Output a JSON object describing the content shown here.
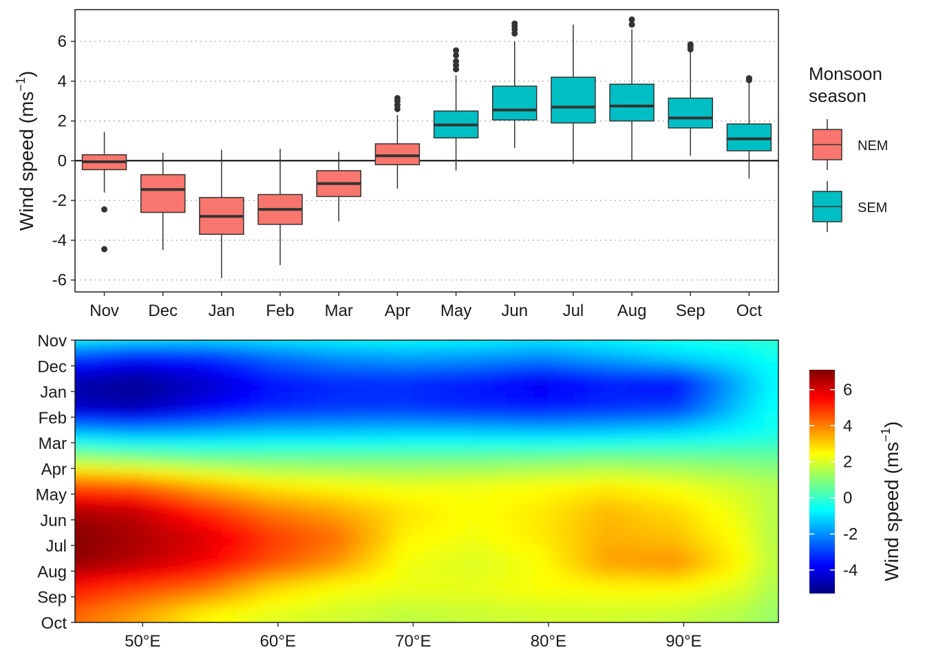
{
  "chart_data": [
    {
      "type": "box",
      "ylabel": "Wind speed (ms",
      "ylabel_sup": "−1",
      "ylabel_close": ")",
      "ylim": [
        -6.6,
        7.6
      ],
      "yticks": [
        -6,
        -4,
        -2,
        0,
        2,
        4,
        6
      ],
      "grid": "horizontal dotted",
      "legend": {
        "title_line1": "Monsoon",
        "title_line2": "season",
        "placement": "right",
        "entries": [
          {
            "name": "NEM",
            "color": "#F8766D"
          },
          {
            "name": "SEM",
            "color": "#00BFC4"
          }
        ]
      },
      "categories": [
        "Nov",
        "Dec",
        "Jan",
        "Feb",
        "Mar",
        "Apr",
        "May",
        "Jun",
        "Jul",
        "Aug",
        "Sep",
        "Oct"
      ],
      "boxes": [
        {
          "month": "Nov",
          "season": "NEM",
          "min": -1.6,
          "q1": -0.45,
          "median": -0.05,
          "q3": 0.3,
          "max": 1.45,
          "outliers": [
            -2.45,
            -4.45
          ]
        },
        {
          "month": "Dec",
          "season": "NEM",
          "min": -4.5,
          "q1": -2.6,
          "median": -1.45,
          "q3": -0.7,
          "max": 0.4,
          "outliers": []
        },
        {
          "month": "Jan",
          "season": "NEM",
          "min": -5.9,
          "q1": -3.7,
          "median": -2.8,
          "q3": -1.85,
          "max": 0.55,
          "outliers": []
        },
        {
          "month": "Feb",
          "season": "NEM",
          "min": -5.25,
          "q1": -3.2,
          "median": -2.45,
          "q3": -1.7,
          "max": 0.6,
          "outliers": []
        },
        {
          "month": "Mar",
          "season": "NEM",
          "min": -3.05,
          "q1": -1.8,
          "median": -1.15,
          "q3": -0.5,
          "max": 0.45,
          "outliers": []
        },
        {
          "month": "Apr",
          "season": "NEM",
          "min": -1.4,
          "q1": -0.2,
          "median": 0.25,
          "q3": 0.85,
          "max": 2.3,
          "outliers": [
            2.6,
            2.8,
            3.0,
            3.15
          ]
        },
        {
          "month": "May",
          "season": "SEM",
          "min": -0.5,
          "q1": 1.15,
          "median": 1.8,
          "q3": 2.5,
          "max": 4.3,
          "outliers": [
            4.6,
            4.8,
            5.0,
            5.3,
            5.55
          ]
        },
        {
          "month": "Jun",
          "season": "SEM",
          "min": 0.65,
          "q1": 2.05,
          "median": 2.55,
          "q3": 3.75,
          "max": 6.0,
          "outliers": [
            6.4,
            6.6,
            6.75,
            6.9
          ]
        },
        {
          "month": "Jul",
          "season": "SEM",
          "min": -0.15,
          "q1": 1.9,
          "median": 2.7,
          "q3": 4.2,
          "max": 6.85,
          "outliers": []
        },
        {
          "month": "Aug",
          "season": "SEM",
          "min": 0.05,
          "q1": 2.0,
          "median": 2.75,
          "q3": 3.85,
          "max": 6.6,
          "outliers": [
            6.85,
            7.1
          ]
        },
        {
          "month": "Sep",
          "season": "SEM",
          "min": 0.25,
          "q1": 1.65,
          "median": 2.15,
          "q3": 3.15,
          "max": 5.5,
          "outliers": [
            5.6,
            5.75,
            5.85
          ]
        },
        {
          "month": "Oct",
          "season": "SEM",
          "min": -0.9,
          "q1": 0.5,
          "median": 1.1,
          "q3": 1.85,
          "max": 3.9,
          "outliers": [
            4.05,
            4.15
          ]
        }
      ]
    },
    {
      "type": "heatmap",
      "x_label_unit": "°E",
      "xlim": [
        45,
        97
      ],
      "xticks": [
        50,
        60,
        70,
        80,
        90
      ],
      "y_categories_top_to_bottom": [
        "Nov",
        "Dec",
        "Jan",
        "Feb",
        "Mar",
        "Apr",
        "May",
        "Jun",
        "Jul",
        "Aug",
        "Sep",
        "Oct"
      ],
      "colorbar": {
        "label": "Wind speed (ms",
        "label_sup": "−1",
        "label_close": ")",
        "range": [
          -5.3,
          7.1
        ],
        "ticks": [
          -4,
          -2,
          0,
          2,
          4,
          6
        ],
        "palette": [
          "#00007F",
          "#0000FF",
          "#007FFF",
          "#00FFFF",
          "#7FFF7F",
          "#FFFF00",
          "#FF7F00",
          "#FF0000",
          "#7F0000"
        ]
      },
      "value_columns_longitude": [
        45,
        50,
        55,
        60,
        65,
        70,
        75,
        80,
        85,
        90,
        95,
        97
      ],
      "value_rows": [
        {
          "month": "Nov",
          "values": [
            0.2,
            0.0,
            -0.3,
            -0.4,
            -0.3,
            -0.2,
            -0.3,
            -0.5,
            -0.3,
            -0.2,
            -0.1,
            0.0
          ]
        },
        {
          "month": "Dec",
          "values": [
            -3.0,
            -3.6,
            -3.3,
            -2.5,
            -2.0,
            -1.8,
            -1.9,
            -2.1,
            -1.7,
            -1.2,
            -0.8,
            -0.5
          ]
        },
        {
          "month": "Jan",
          "values": [
            -4.8,
            -5.1,
            -4.5,
            -3.6,
            -3.3,
            -3.3,
            -3.5,
            -4.0,
            -3.5,
            -3.6,
            -1.5,
            -0.8
          ]
        },
        {
          "month": "Feb",
          "values": [
            -4.4,
            -4.7,
            -3.9,
            -3.3,
            -3.1,
            -3.1,
            -3.3,
            -3.4,
            -3.2,
            -3.0,
            -1.2,
            -0.6
          ]
        },
        {
          "month": "Mar",
          "values": [
            -1.2,
            -1.5,
            -1.4,
            -1.2,
            -1.2,
            -1.1,
            -1.1,
            -1.2,
            -1.1,
            -0.9,
            -0.6,
            -0.4
          ]
        },
        {
          "month": "Apr",
          "values": [
            1.5,
            1.2,
            0.9,
            0.8,
            0.8,
            0.8,
            0.8,
            0.9,
            1.0,
            0.9,
            0.8,
            0.7
          ]
        },
        {
          "month": "May",
          "values": [
            4.6,
            4.3,
            3.4,
            2.7,
            2.4,
            2.2,
            2.3,
            2.4,
            2.6,
            2.3,
            1.8,
            1.6
          ]
        },
        {
          "month": "Jun",
          "values": [
            6.6,
            6.3,
            5.1,
            4.1,
            3.5,
            2.8,
            2.4,
            2.7,
            3.3,
            2.9,
            2.1,
            1.6
          ]
        },
        {
          "month": "Jul",
          "values": [
            7.1,
            6.6,
            6.0,
            4.9,
            4.2,
            2.6,
            2.3,
            2.7,
            3.4,
            3.2,
            2.3,
            1.6
          ]
        },
        {
          "month": "Aug",
          "values": [
            6.9,
            6.4,
            5.7,
            4.6,
            3.7,
            2.3,
            2.0,
            2.4,
            3.6,
            3.8,
            2.4,
            1.7
          ]
        },
        {
          "month": "Sep",
          "values": [
            5.4,
            4.8,
            4.2,
            3.0,
            2.4,
            2.2,
            2.2,
            2.4,
            2.5,
            2.5,
            2.0,
            1.5
          ]
        },
        {
          "month": "Oct",
          "values": [
            4.4,
            3.6,
            2.6,
            2.1,
            1.9,
            1.7,
            1.8,
            1.9,
            1.9,
            1.8,
            1.5,
            1.2
          ]
        }
      ]
    }
  ]
}
